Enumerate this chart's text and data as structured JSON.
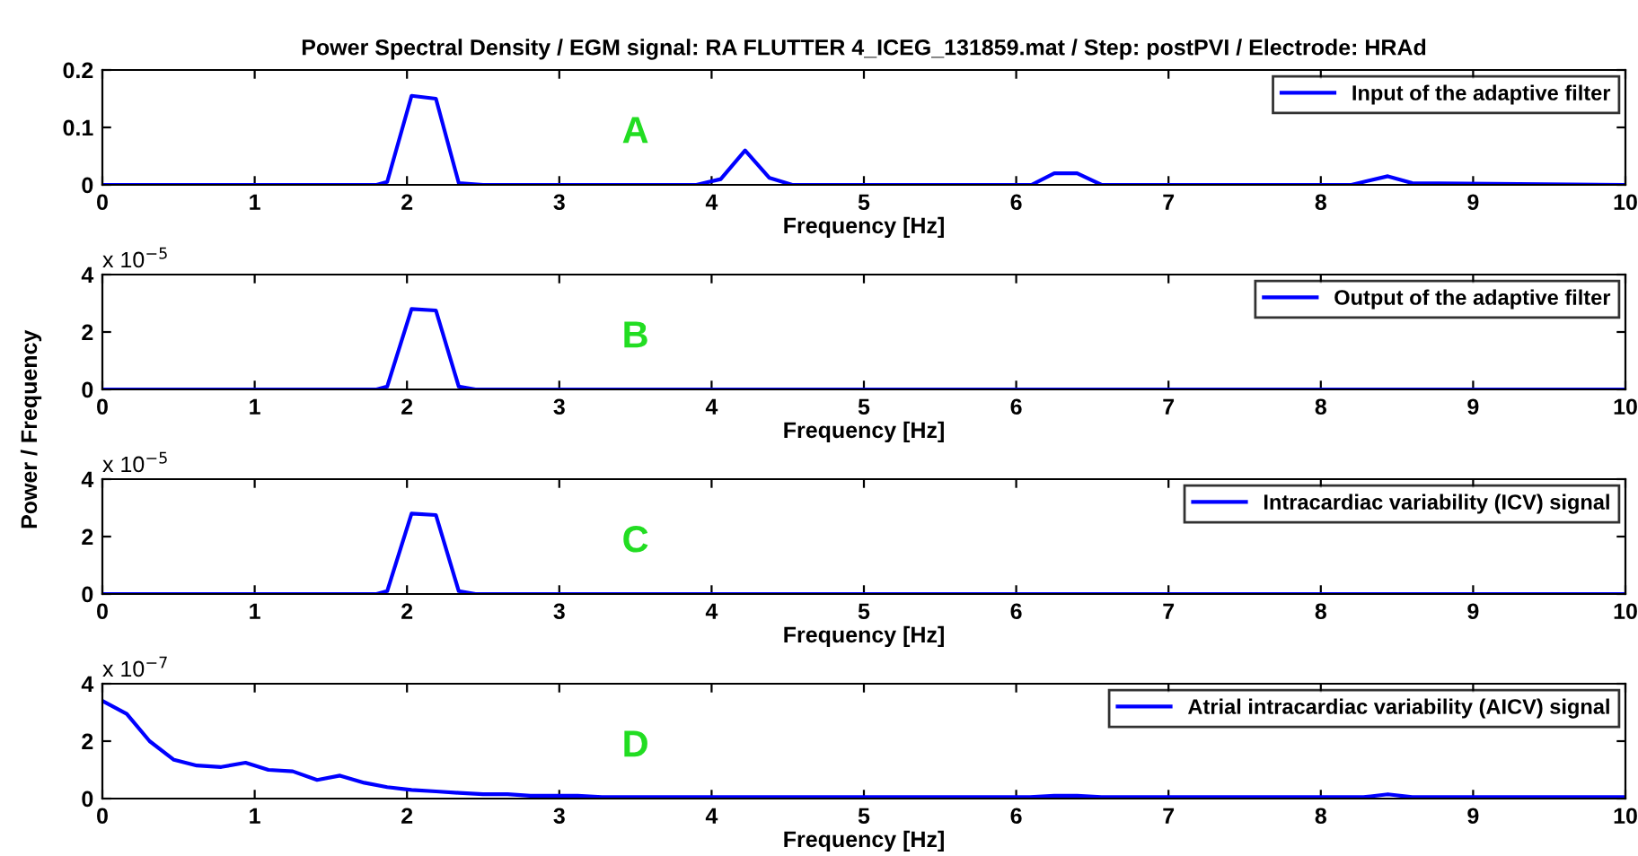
{
  "chart_data": [
    {
      "type": "line",
      "title": "Power Spectral Density / EGM signal: RA FLUTTER 4_ICEG_131859.mat / Step: postPVI / Electrode: HRAd",
      "xlabel": "Frequency [Hz]",
      "annotations": [
        "A"
      ],
      "xlim": [
        0,
        10
      ],
      "xticks": [
        0,
        1,
        2,
        3,
        4,
        5,
        6,
        7,
        8,
        9,
        10
      ],
      "ylim": [
        0,
        0.2
      ],
      "yticks": [
        0,
        0.1,
        0.2
      ],
      "grid": false,
      "legend": "top right",
      "marker": "none",
      "line_style": "solid",
      "series": [
        {
          "name": "Input of the adaptive filter",
          "color": "#0000ff",
          "x": [
            0,
            1.8,
            1.87,
            2.03,
            2.19,
            2.34,
            2.5,
            3.9,
            4.06,
            4.22,
            4.38,
            4.53,
            6.1,
            6.25,
            6.4,
            6.56,
            8.2,
            8.28,
            8.44,
            8.6,
            10
          ],
          "values": [
            0,
            0,
            0.005,
            0.155,
            0.15,
            0.003,
            0,
            0,
            0.01,
            0.06,
            0.012,
            0,
            0,
            0.02,
            0.02,
            0,
            0,
            0.005,
            0.015,
            0.003,
            0
          ]
        }
      ]
    },
    {
      "type": "line",
      "xlabel": "Frequency [Hz]",
      "ylabel": "Power / Frequency",
      "annotations": [
        "B",
        "x 10$^{−5}$"
      ],
      "xlim": [
        0,
        10
      ],
      "xticks": [
        0,
        1,
        2,
        3,
        4,
        5,
        6,
        7,
        8,
        9,
        10
      ],
      "ylim": [
        0,
        4
      ],
      "yticks": [
        0,
        2,
        4
      ],
      "grid": false,
      "legend": "top right",
      "marker": "none",
      "line_style": "solid",
      "series": [
        {
          "name": "Output of the adaptive filter",
          "color": "#0000ff",
          "x": [
            0,
            1.8,
            1.87,
            2.03,
            2.19,
            2.34,
            2.45,
            10
          ],
          "values": [
            0,
            0,
            0.1,
            2.8,
            2.75,
            0.1,
            0,
            0
          ]
        }
      ]
    },
    {
      "type": "line",
      "xlabel": "Frequency [Hz]",
      "annotations": [
        "C",
        "x 10$^{−5}$"
      ],
      "xlim": [
        0,
        10
      ],
      "xticks": [
        0,
        1,
        2,
        3,
        4,
        5,
        6,
        7,
        8,
        9,
        10
      ],
      "ylim": [
        0,
        4
      ],
      "yticks": [
        0,
        2,
        4
      ],
      "grid": false,
      "legend": "top right",
      "marker": "none",
      "line_style": "solid",
      "series": [
        {
          "name": "Intracardiac variability (ICV) signal",
          "color": "#0000ff",
          "x": [
            0,
            1.8,
            1.87,
            2.03,
            2.19,
            2.34,
            2.45,
            10
          ],
          "values": [
            0,
            0,
            0.1,
            2.8,
            2.75,
            0.1,
            0,
            0
          ]
        }
      ]
    },
    {
      "type": "line",
      "xlabel": "Frequency [Hz]",
      "annotations": [
        "D",
        "x 10$^{−7}$"
      ],
      "xlim": [
        0,
        10
      ],
      "xticks": [
        0,
        1,
        2,
        3,
        4,
        5,
        6,
        7,
        8,
        9,
        10
      ],
      "ylim": [
        0,
        4
      ],
      "yticks": [
        0,
        2,
        4
      ],
      "grid": false,
      "legend": "top right",
      "marker": "none",
      "line_style": "solid",
      "series": [
        {
          "name": "Atrial intracardiac variability (AICV) signal",
          "color": "#0000ff",
          "x": [
            0,
            0.16,
            0.31,
            0.47,
            0.62,
            0.78,
            0.94,
            1.09,
            1.25,
            1.41,
            1.56,
            1.72,
            1.87,
            2.03,
            2.19,
            2.34,
            2.5,
            2.66,
            2.81,
            2.97,
            3.12,
            3.28,
            4,
            6.09,
            6.25,
            6.4,
            6.56,
            8.28,
            8.44,
            8.6,
            10
          ],
          "values": [
            3.4,
            2.95,
            2.0,
            1.35,
            1.15,
            1.1,
            1.25,
            1.0,
            0.95,
            0.65,
            0.8,
            0.55,
            0.4,
            0.3,
            0.25,
            0.2,
            0.15,
            0.15,
            0.1,
            0.1,
            0.1,
            0.05,
            0.05,
            0.05,
            0.1,
            0.1,
            0.05,
            0.05,
            0.15,
            0.05,
            0.05
          ]
        }
      ]
    }
  ]
}
